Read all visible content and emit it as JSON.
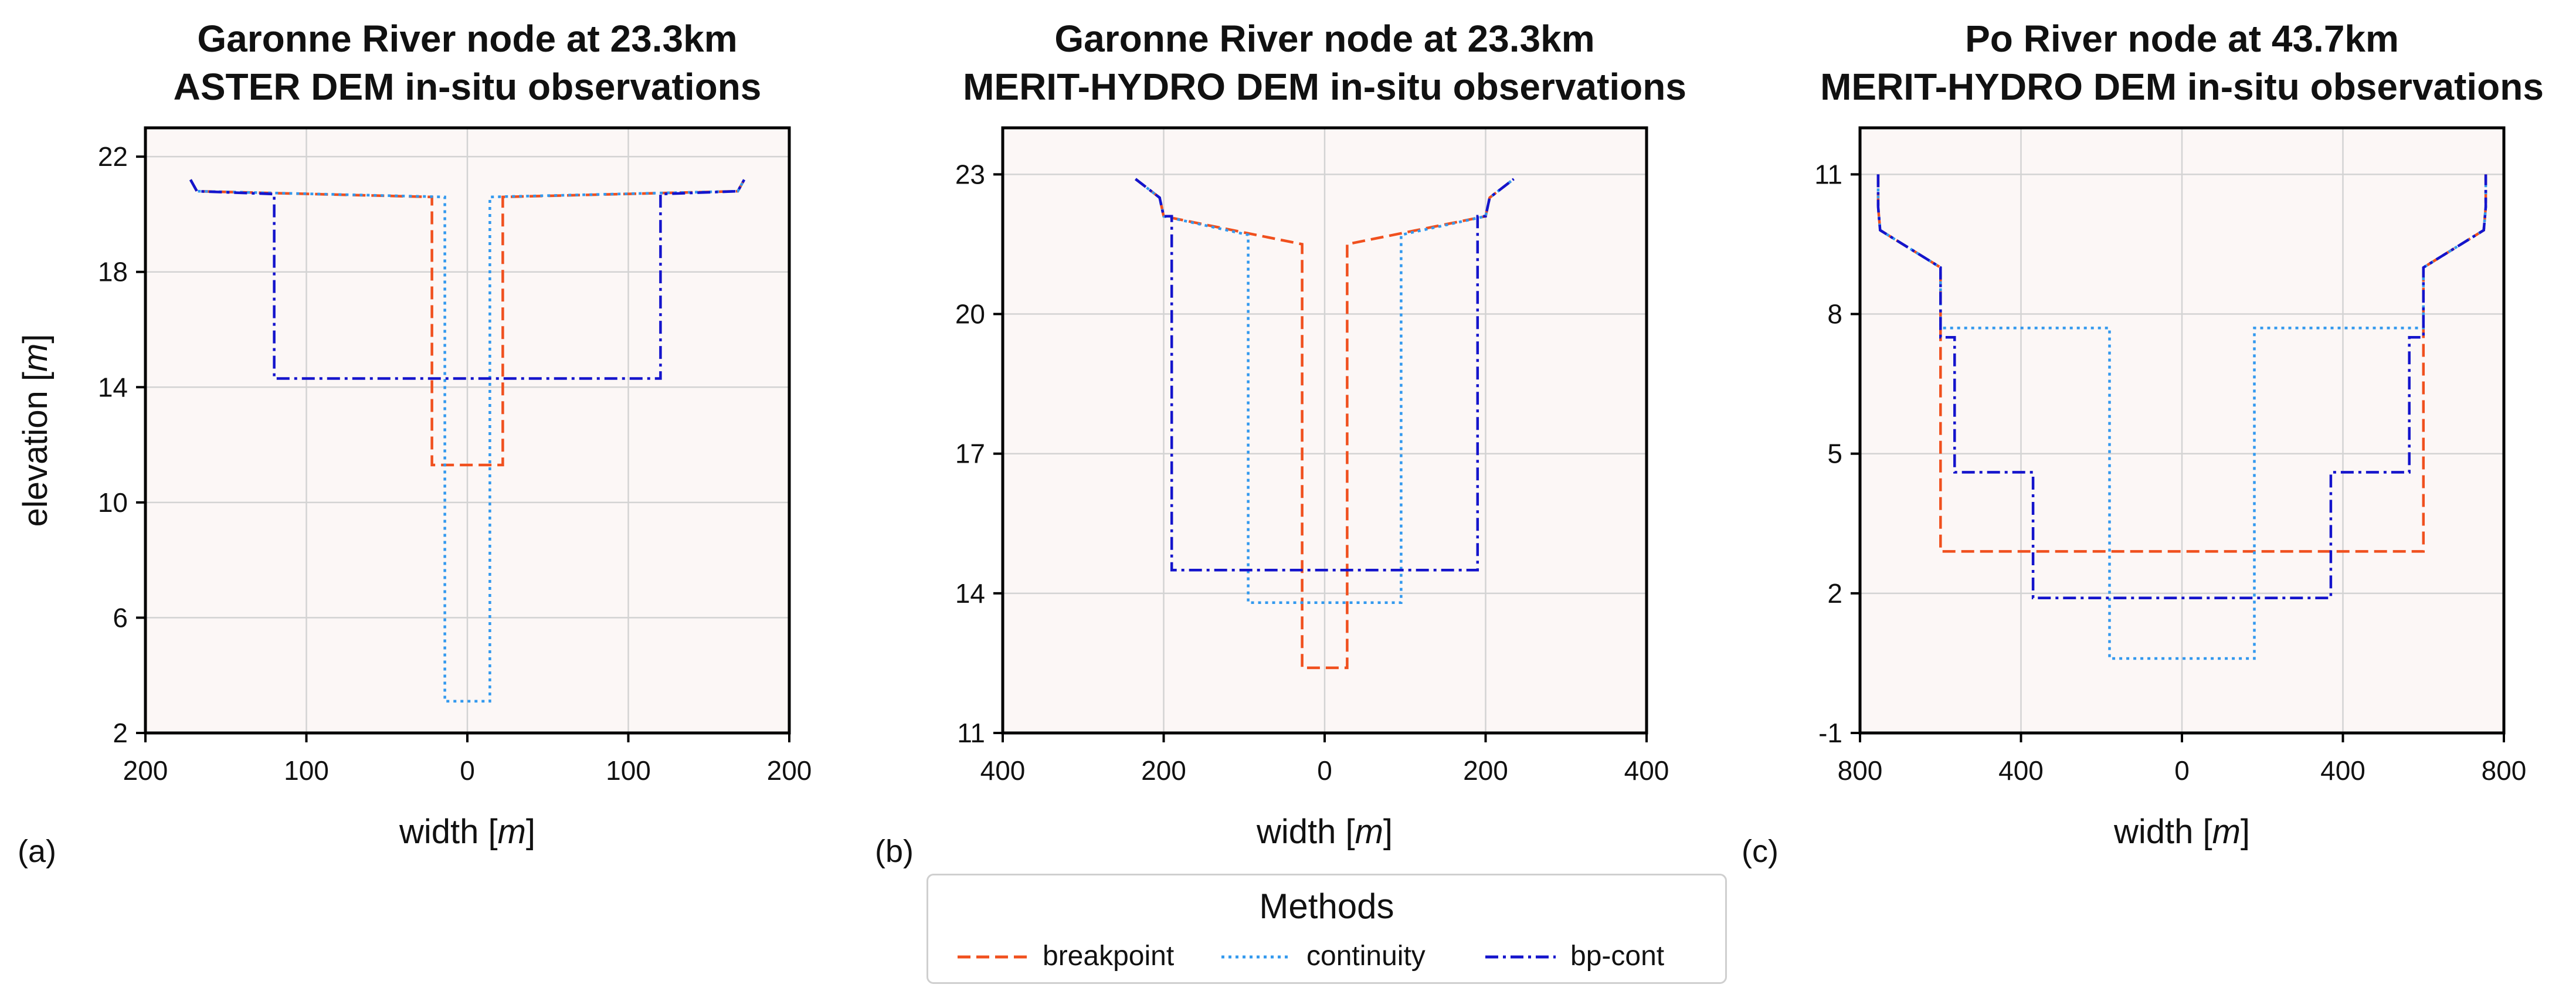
{
  "chart_data": [
    {
      "type": "line",
      "panel_label": "(a)",
      "title_line1": "Garonne River node at 23.3km",
      "title_line2": "ASTER DEM in-situ observations",
      "xlabel": "width",
      "xunit": "m",
      "ylabel": "elevation",
      "yunit": "m",
      "xlim": [
        -200,
        200
      ],
      "ylim": [
        2,
        23
      ],
      "xticks": [
        -200,
        -100,
        0,
        100,
        200
      ],
      "xtick_labels": [
        "200",
        "100",
        "0",
        "100",
        "200"
      ],
      "yticks": [
        2,
        6,
        10,
        14,
        18,
        22
      ],
      "ytick_labels": [
        "2",
        "6",
        "10",
        "14",
        "18",
        "22"
      ],
      "series": [
        {
          "name": "breakpoint",
          "x": [
            -172,
            -168,
            -22,
            -22,
            22,
            22,
            168,
            172
          ],
          "y": [
            21.2,
            20.8,
            20.6,
            11.3,
            11.3,
            20.6,
            20.8,
            21.2
          ]
        },
        {
          "name": "continuity",
          "x": [
            -172,
            -168,
            -14,
            -14,
            14,
            14,
            168,
            172
          ],
          "y": [
            21.2,
            20.8,
            20.6,
            3.1,
            3.1,
            20.6,
            20.8,
            21.2
          ]
        },
        {
          "name": "bp-cont",
          "x": [
            -172,
            -168,
            -120,
            -120,
            120,
            120,
            168,
            172
          ],
          "y": [
            21.2,
            20.8,
            20.7,
            14.3,
            14.3,
            20.7,
            20.8,
            21.2
          ]
        }
      ]
    },
    {
      "type": "line",
      "panel_label": "(b)",
      "title_line1": "Garonne River node at 23.3km",
      "title_line2": "MERIT-HYDRO DEM in-situ observations",
      "xlabel": "width",
      "xunit": "m",
      "ylabel": "",
      "yunit": "",
      "xlim": [
        -400,
        400
      ],
      "ylim": [
        11,
        24
      ],
      "xticks": [
        -400,
        -200,
        0,
        200,
        400
      ],
      "xtick_labels": [
        "400",
        "200",
        "0",
        "200",
        "400"
      ],
      "yticks": [
        11,
        14,
        17,
        20,
        23
      ],
      "ytick_labels": [
        "11",
        "14",
        "17",
        "20",
        "23"
      ],
      "series": [
        {
          "name": "breakpoint",
          "x": [
            -235,
            -205,
            -200,
            -28,
            -28,
            28,
            28,
            200,
            205,
            235
          ],
          "y": [
            22.9,
            22.5,
            22.1,
            21.5,
            12.4,
            12.4,
            21.5,
            22.1,
            22.5,
            22.9
          ]
        },
        {
          "name": "continuity",
          "x": [
            -235,
            -205,
            -200,
            -95,
            -95,
            95,
            95,
            200,
            205,
            235
          ],
          "y": [
            22.9,
            22.5,
            22.1,
            21.7,
            13.8,
            13.8,
            21.7,
            22.1,
            22.5,
            22.9
          ]
        },
        {
          "name": "bp-cont",
          "x": [
            -235,
            -205,
            -200,
            -190,
            -190,
            190,
            190,
            200,
            205,
            235
          ],
          "y": [
            22.9,
            22.5,
            22.1,
            22.1,
            14.5,
            14.5,
            22.1,
            22.1,
            22.5,
            22.9
          ]
        }
      ]
    },
    {
      "type": "line",
      "panel_label": "(c)",
      "title_line1": "Po River node at 43.7km",
      "title_line2": "MERIT-HYDRO DEM in-situ observations",
      "xlabel": "width",
      "xunit": "m",
      "ylabel": "",
      "yunit": "",
      "xlim": [
        -800,
        800
      ],
      "ylim": [
        -1,
        12
      ],
      "xticks": [
        -800,
        -400,
        0,
        400,
        800
      ],
      "xtick_labels": [
        "800",
        "400",
        "0",
        "400",
        "800"
      ],
      "yticks": [
        -1,
        2,
        5,
        8,
        11
      ],
      "ytick_labels": [
        "-1",
        "2",
        "5",
        "8",
        "11"
      ],
      "series": [
        {
          "name": "breakpoint",
          "x": [
            -755,
            -755,
            -750,
            -600,
            -600,
            600,
            600,
            750,
            755,
            755
          ],
          "y": [
            11.0,
            10.3,
            9.8,
            9.0,
            2.9,
            2.9,
            9.0,
            9.8,
            10.3,
            11.0
          ]
        },
        {
          "name": "continuity",
          "x": [
            -755,
            -755,
            -750,
            -600,
            -600,
            -180,
            -180,
            180,
            180,
            600,
            600,
            750,
            755,
            755
          ],
          "y": [
            11.0,
            10.3,
            9.8,
            9.0,
            7.7,
            7.7,
            0.6,
            0.6,
            7.7,
            7.7,
            9.0,
            9.8,
            10.3,
            11.0
          ]
        },
        {
          "name": "bp-cont",
          "x": [
            -755,
            -755,
            -750,
            -600,
            -600,
            -565,
            -565,
            -370,
            -370,
            370,
            370,
            565,
            565,
            600,
            600,
            750,
            755,
            755
          ],
          "y": [
            11.0,
            10.3,
            9.8,
            9.0,
            7.5,
            7.5,
            4.6,
            4.6,
            1.9,
            1.9,
            4.6,
            4.6,
            7.5,
            7.5,
            9.0,
            9.8,
            10.3,
            11.0
          ]
        }
      ]
    }
  ],
  "legend": {
    "title": "Methods",
    "entries": [
      {
        "name": "breakpoint",
        "color": "#f0501e",
        "dash": "dashed"
      },
      {
        "name": "continuity",
        "color": "#3399ee",
        "dash": "dotted"
      },
      {
        "name": "bp-cont",
        "color": "#1414cc",
        "dash": "dashdot"
      }
    ]
  },
  "colors": {
    "plot_background": "#fcf7f6",
    "grid": "#d3d3d3",
    "axes": "#000000"
  }
}
